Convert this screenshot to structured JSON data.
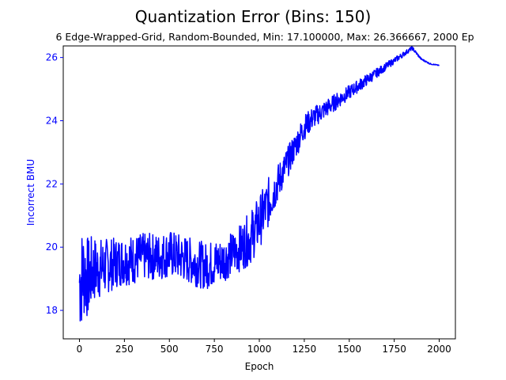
{
  "chart_data": {
    "type": "line",
    "title": "Quantization Error (Bins: 150)",
    "subtitle": "6 Edge-Wrapped-Grid, Random-Bounded, Min: 17.100000, Max: 26.366667, 2000 Ep",
    "xlabel": "Epoch",
    "ylabel": "Incorrect BMU",
    "xlim": [
      -90,
      2090
    ],
    "ylim": [
      17.1,
      26.366667
    ],
    "x_ticks": [
      "0",
      "250",
      "500",
      "750",
      "1000",
      "1250",
      "1500",
      "1750",
      "2000"
    ],
    "y_ticks": [
      "18",
      "20",
      "22",
      "24",
      "26"
    ],
    "grid": false,
    "colors": {
      "series": "#0000ff",
      "ylabel": "#0000ff",
      "yticks": "#0000ff",
      "axes": "#000000"
    },
    "series": [
      {
        "x": [
          0,
          25,
          50,
          75,
          100,
          150,
          200,
          250,
          300,
          350,
          400,
          450,
          500,
          550,
          600,
          650,
          700,
          750,
          800,
          850,
          900,
          950,
          1000,
          1050,
          1100,
          1150,
          1200,
          1250,
          1300,
          1350,
          1400,
          1450,
          1500,
          1550,
          1600,
          1650,
          1700,
          1750,
          1800,
          1850,
          1900,
          1950,
          2000
        ],
        "y": [
          18.9,
          19.2,
          19.0,
          19.3,
          19.3,
          19.4,
          19.5,
          19.6,
          19.6,
          19.7,
          19.7,
          19.7,
          19.8,
          19.7,
          19.6,
          19.5,
          19.4,
          19.5,
          19.6,
          19.8,
          20.0,
          20.3,
          20.8,
          21.4,
          22.0,
          22.6,
          23.2,
          23.8,
          24.1,
          24.3,
          24.5,
          24.7,
          24.9,
          25.1,
          25.3,
          25.5,
          25.7,
          25.9,
          26.1,
          26.3,
          25.95,
          25.8,
          25.75
        ],
        "noise_amplitude": [
          1.7,
          1.5,
          1.3,
          1.1,
          1.0,
          0.9,
          0.8,
          0.8,
          0.8,
          0.75,
          0.75,
          0.75,
          0.75,
          0.75,
          0.75,
          0.75,
          0.75,
          0.75,
          0.7,
          0.7,
          0.75,
          0.85,
          0.85,
          0.8,
          0.6,
          0.5,
          0.45,
          0.4,
          0.35,
          0.3,
          0.28,
          0.25,
          0.22,
          0.2,
          0.18,
          0.15,
          0.12,
          0.1,
          0.08,
          0.06,
          0.03,
          0.02,
          0.01
        ]
      }
    ]
  }
}
